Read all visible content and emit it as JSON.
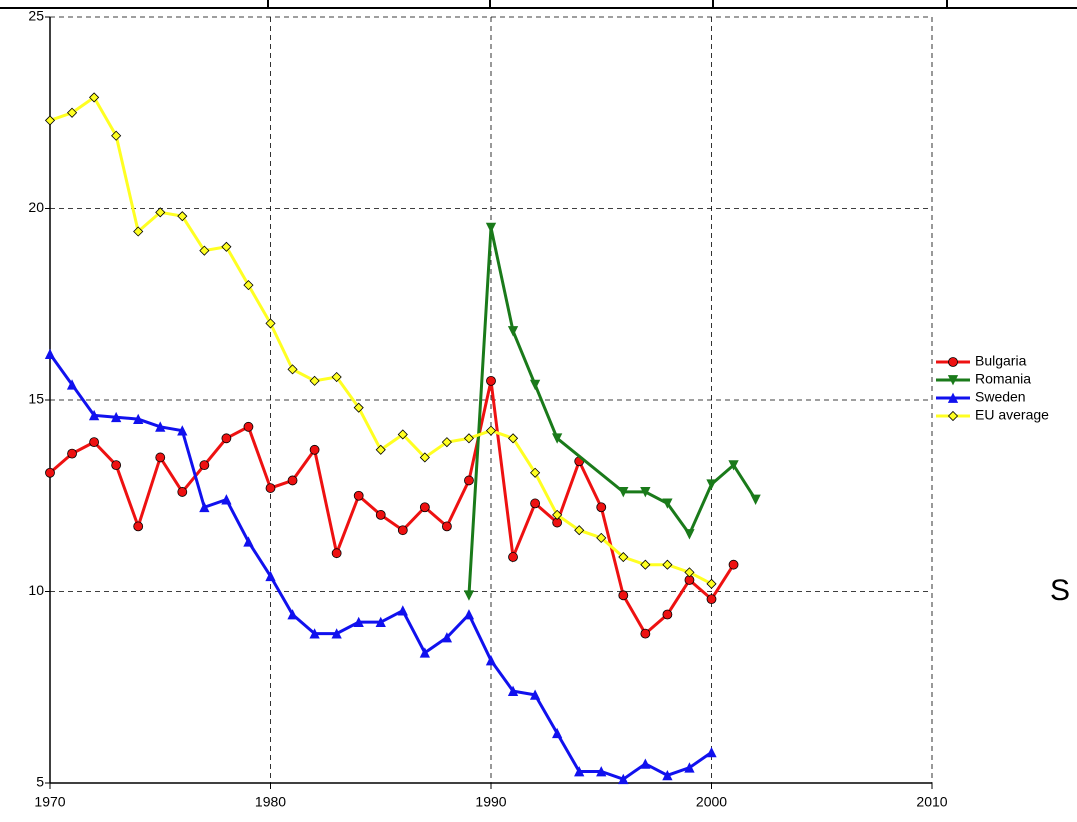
{
  "chart_data": {
    "type": "line",
    "annotation": "S",
    "xlim": [
      1970,
      2010
    ],
    "xticks": [
      1970,
      1980,
      1990,
      2000,
      2010
    ],
    "ylim": [
      5,
      25
    ],
    "yticks": [
      5,
      10,
      15,
      20,
      25
    ],
    "grid": true,
    "legend": "right",
    "series": [
      {
        "name": "Bulgaria",
        "color": "#ee1111",
        "marker": "circle",
        "x": [
          1970,
          1971,
          1972,
          1973,
          1974,
          1975,
          1976,
          1977,
          1978,
          1979,
          1980,
          1981,
          1982,
          1983,
          1984,
          1985,
          1986,
          1987,
          1988,
          1989,
          1990,
          1991,
          1992,
          1993,
          1994,
          1995,
          1996,
          1997,
          1998,
          1999,
          2000,
          2001
        ],
        "values": [
          13.1,
          13.6,
          13.9,
          13.3,
          11.7,
          13.5,
          12.6,
          13.3,
          14.0,
          14.3,
          12.7,
          12.9,
          13.7,
          11.0,
          12.5,
          12.0,
          11.6,
          12.2,
          11.7,
          12.9,
          15.5,
          10.9,
          12.3,
          11.8,
          13.4,
          12.2,
          9.9,
          8.9,
          9.4,
          10.3,
          9.8,
          10.7
        ]
      },
      {
        "name": "Romania",
        "color": "#1a7a1a",
        "marker": "triangle-down",
        "x": [
          1989,
          1990,
          1991,
          1992,
          1993,
          1996,
          1997,
          1998,
          1999,
          2000,
          2001,
          2002
        ],
        "values": [
          9.9,
          19.5,
          16.8,
          15.4,
          14.0,
          12.6,
          12.6,
          12.3,
          11.5,
          12.8,
          13.3,
          12.4
        ]
      },
      {
        "name": "Sweden",
        "color": "#1111ee",
        "marker": "triangle-up",
        "x": [
          1970,
          1971,
          1972,
          1973,
          1974,
          1975,
          1976,
          1977,
          1978,
          1979,
          1980,
          1981,
          1982,
          1983,
          1984,
          1985,
          1986,
          1987,
          1988,
          1989,
          1990,
          1991,
          1992,
          1993,
          1994,
          1995,
          1996,
          1997,
          1998,
          1999,
          2000
        ],
        "values": [
          16.2,
          15.4,
          14.6,
          14.55,
          14.5,
          14.3,
          14.2,
          12.2,
          12.4,
          11.3,
          10.4,
          9.4,
          8.9,
          8.9,
          9.2,
          9.2,
          9.5,
          8.4,
          8.8,
          9.4,
          8.2,
          7.4,
          7.3,
          6.3,
          5.3,
          5.3,
          5.1,
          5.5,
          5.2,
          5.4,
          5.8
        ]
      },
      {
        "name": "EU average",
        "color": "#ffff22",
        "marker": "diamond",
        "x": [
          1970,
          1971,
          1972,
          1973,
          1974,
          1975,
          1976,
          1977,
          1978,
          1979,
          1980,
          1981,
          1982,
          1983,
          1984,
          1985,
          1986,
          1987,
          1988,
          1989,
          1990,
          1991,
          1992,
          1993,
          1994,
          1995,
          1996,
          1997,
          1998,
          1999,
          2000
        ],
        "values": [
          22.3,
          22.5,
          22.9,
          21.9,
          19.4,
          19.9,
          19.8,
          18.9,
          19.0,
          18.0,
          17.0,
          15.8,
          15.5,
          15.6,
          14.8,
          13.7,
          14.1,
          13.5,
          13.9,
          14.0,
          14.2,
          14.0,
          13.1,
          12.0,
          11.6,
          11.4,
          10.9,
          10.7,
          10.7,
          10.5,
          10.2
        ]
      }
    ]
  }
}
